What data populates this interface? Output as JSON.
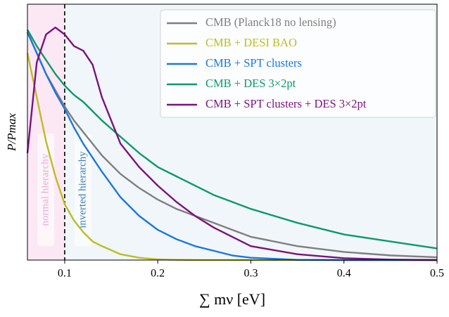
{
  "chart_data": {
    "type": "line",
    "xlabel": "∑ mν [eV]",
    "ylabel": "P/Pmax",
    "x": [
      0.06,
      0.07,
      0.08,
      0.09,
      0.1,
      0.11,
      0.12,
      0.13,
      0.14,
      0.16,
      0.18,
      0.2,
      0.22,
      0.24,
      0.26,
      0.28,
      0.3,
      0.35,
      0.4,
      0.45,
      0.5
    ],
    "series": [
      {
        "name": "CMB (Planck18 no lensing)",
        "color": "#7f7f7f",
        "values": [
          0.98,
          0.89,
          0.8,
          0.73,
          0.66,
          0.6,
          0.55,
          0.5,
          0.45,
          0.37,
          0.31,
          0.26,
          0.22,
          0.19,
          0.16,
          0.13,
          0.1,
          0.06,
          0.035,
          0.02,
          0.012
        ]
      },
      {
        "name": "CMB + DESI BAO",
        "color": "#bcbd22",
        "values": [
          0.89,
          0.7,
          0.51,
          0.36,
          0.24,
          0.17,
          0.12,
          0.08,
          0.06,
          0.025,
          0.01,
          0.003,
          0.001,
          0,
          0,
          0,
          0,
          0,
          0,
          0,
          0
        ]
      },
      {
        "name": "CMB + SPT clusters",
        "color": "#1a78dc",
        "values": [
          0.98,
          0.89,
          0.8,
          0.72,
          0.65,
          0.57,
          0.5,
          0.44,
          0.38,
          0.27,
          0.19,
          0.13,
          0.09,
          0.06,
          0.04,
          0.02,
          0.01,
          0.001,
          0,
          0,
          0
        ]
      },
      {
        "name": "CMB + DES 3×2pt",
        "color": "#0c9a68",
        "values": [
          0.99,
          0.92,
          0.86,
          0.8,
          0.75,
          0.71,
          0.68,
          0.64,
          0.6,
          0.53,
          0.46,
          0.4,
          0.36,
          0.32,
          0.28,
          0.25,
          0.22,
          0.16,
          0.11,
          0.08,
          0.05
        ]
      },
      {
        "name": "CMB + SPT clusters + DES 3×2pt",
        "color": "#7b127f",
        "values": [
          0.46,
          0.85,
          0.97,
          1.0,
          0.97,
          0.92,
          0.9,
          0.84,
          0.7,
          0.5,
          0.4,
          0.32,
          0.25,
          0.19,
          0.14,
          0.1,
          0.06,
          0.025,
          0.008,
          0.002,
          0
        ]
      }
    ],
    "regions": [
      {
        "label": "normal hierarchy",
        "x": [
          0.06,
          0.1
        ],
        "color": "#fbe8f4",
        "label_color": "#e9a9d3"
      },
      {
        "label": "inverted hierarchy",
        "x": [
          0.1,
          0.5
        ],
        "color": "#f1f6fa",
        "label_color": "#3a7fb5"
      }
    ],
    "vline": 0.1,
    "xlim": [
      0.06,
      0.5
    ],
    "ylim": [
      0,
      1.1
    ],
    "xticks": [
      0.1,
      0.2,
      0.3,
      0.4,
      0.5
    ],
    "legend": "upper right"
  }
}
